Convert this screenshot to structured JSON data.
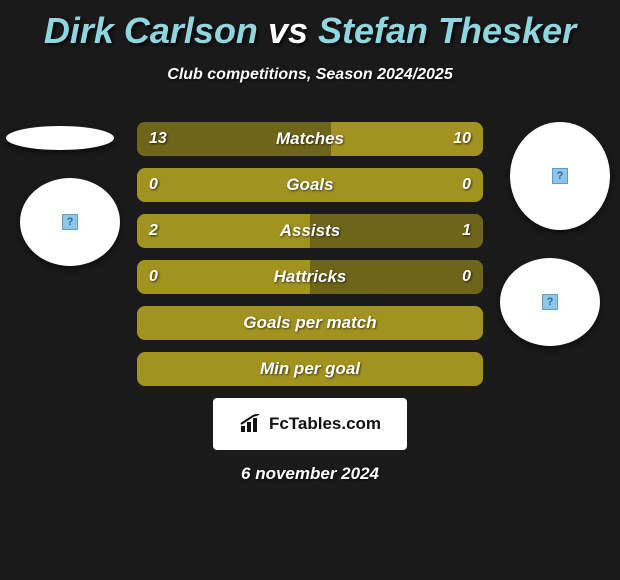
{
  "title": {
    "player1": "Dirk Carlson",
    "vs": "vs",
    "player2": "Stefan Thesker",
    "player1_color": "#8fd6e0",
    "player2_color": "#8fd6e0",
    "vs_color": "#ffffff"
  },
  "subtitle": "Club competitions, Season 2024/2025",
  "chart": {
    "bar_bg_color": "#a29320",
    "bar_fill_color": "#6e641a",
    "rows": [
      {
        "label": "Matches",
        "left": "13",
        "right": "10",
        "fill_left_pct": 56,
        "fill_right_pct": 0
      },
      {
        "label": "Goals",
        "left": "0",
        "right": "0",
        "fill_left_pct": 0,
        "fill_right_pct": 0
      },
      {
        "label": "Assists",
        "left": "2",
        "right": "1",
        "fill_left_pct": 0,
        "fill_right_pct": 50
      },
      {
        "label": "Hattricks",
        "left": "0",
        "right": "0",
        "fill_left_pct": 0,
        "fill_right_pct": 50
      },
      {
        "label": "Goals per match",
        "left": "",
        "right": "",
        "fill_left_pct": 0,
        "fill_right_pct": 0
      },
      {
        "label": "Min per goal",
        "left": "",
        "right": "",
        "fill_left_pct": 0,
        "fill_right_pct": 0
      }
    ]
  },
  "badge": {
    "text": "FcTables.com"
  },
  "date": "6 november 2024",
  "background_color": "#1a1a1a"
}
